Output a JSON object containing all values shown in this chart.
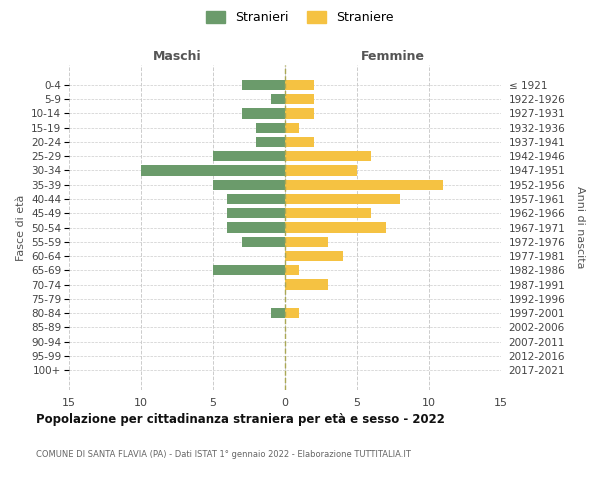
{
  "age_groups": [
    "0-4",
    "5-9",
    "10-14",
    "15-19",
    "20-24",
    "25-29",
    "30-34",
    "35-39",
    "40-44",
    "45-49",
    "50-54",
    "55-59",
    "60-64",
    "65-69",
    "70-74",
    "75-79",
    "80-84",
    "85-89",
    "90-94",
    "95-99",
    "100+"
  ],
  "birth_years": [
    "2017-2021",
    "2012-2016",
    "2007-2011",
    "2002-2006",
    "1997-2001",
    "1992-1996",
    "1987-1991",
    "1982-1986",
    "1977-1981",
    "1972-1976",
    "1967-1971",
    "1962-1966",
    "1957-1961",
    "1952-1956",
    "1947-1951",
    "1942-1946",
    "1937-1941",
    "1932-1936",
    "1927-1931",
    "1922-1926",
    "≤ 1921"
  ],
  "maschi": [
    3,
    1,
    3,
    2,
    2,
    5,
    10,
    5,
    4,
    4,
    4,
    3,
    0,
    5,
    0,
    0,
    1,
    0,
    0,
    0,
    0
  ],
  "femmine": [
    2,
    2,
    2,
    1,
    2,
    6,
    5,
    11,
    8,
    6,
    7,
    3,
    4,
    1,
    3,
    0,
    1,
    0,
    0,
    0,
    0
  ],
  "maschi_color": "#6b9b6b",
  "femmine_color": "#f5c242",
  "title": "Popolazione per cittadinanza straniera per età e sesso - 2022",
  "subtitle": "COMUNE DI SANTA FLAVIA (PA) - Dati ISTAT 1° gennaio 2022 - Elaborazione TUTTITALIA.IT",
  "xlabel_left": "Maschi",
  "xlabel_right": "Femmine",
  "ylabel": "Fasce di età",
  "ylabel_right": "Anni di nascita",
  "legend_maschi": "Stranieri",
  "legend_femmine": "Straniere",
  "xlim": 15,
  "background_color": "#ffffff",
  "grid_color": "#cccccc"
}
